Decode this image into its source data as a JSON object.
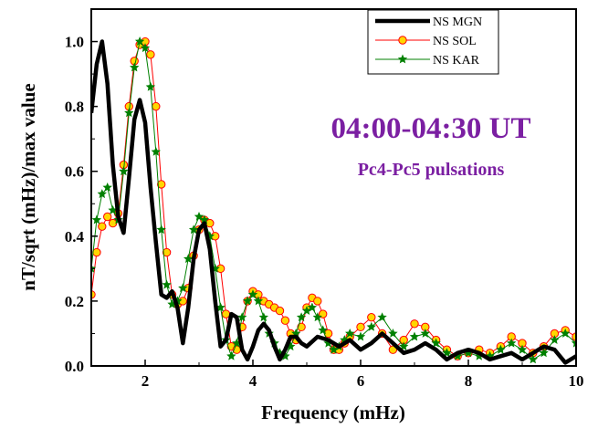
{
  "chart_data": {
    "type": "line",
    "xlabel": "Frequency (mHz)",
    "ylabel": "nT/sqrt (mHz)/max value",
    "xlim": [
      1,
      10
    ],
    "ylim": [
      0,
      1.1
    ],
    "x_ticks": [
      2,
      4,
      6,
      8,
      10
    ],
    "y_ticks": [
      0.0,
      0.2,
      0.4,
      0.6,
      0.8,
      1.0
    ],
    "x_tick_labels": [
      "2",
      "4",
      "6",
      "8",
      "10"
    ],
    "y_tick_labels": [
      "0.0",
      "0.2",
      "0.4",
      "0.6",
      "0.8",
      "1.0"
    ],
    "grid": false,
    "legend_position": "top-right",
    "annotations": [
      "04:00-04:30 UT",
      "Pc4-Pc5 pulsations"
    ],
    "annotation_color": "#7b1fa2",
    "series": [
      {
        "name": "NS MGN",
        "color": "#000000",
        "marker": "none",
        "x": [
          1.0,
          1.1,
          1.2,
          1.3,
          1.4,
          1.5,
          1.6,
          1.7,
          1.8,
          1.9,
          2.0,
          2.1,
          2.2,
          2.3,
          2.4,
          2.5,
          2.6,
          2.7,
          2.8,
          2.9,
          3.0,
          3.1,
          3.2,
          3.3,
          3.4,
          3.5,
          3.6,
          3.7,
          3.8,
          3.9,
          4.0,
          4.1,
          4.2,
          4.3,
          4.4,
          4.5,
          4.6,
          4.7,
          4.8,
          4.9,
          5.0,
          5.2,
          5.4,
          5.6,
          5.8,
          6.0,
          6.2,
          6.4,
          6.6,
          6.8,
          7.0,
          7.2,
          7.4,
          7.6,
          7.8,
          8.0,
          8.2,
          8.4,
          8.6,
          8.8,
          9.0,
          9.2,
          9.4,
          9.6,
          9.8,
          10.0
        ],
        "y": [
          0.78,
          0.93,
          1.0,
          0.87,
          0.62,
          0.46,
          0.41,
          0.58,
          0.76,
          0.82,
          0.75,
          0.55,
          0.38,
          0.22,
          0.21,
          0.23,
          0.18,
          0.07,
          0.18,
          0.33,
          0.42,
          0.44,
          0.36,
          0.2,
          0.06,
          0.08,
          0.16,
          0.15,
          0.05,
          0.02,
          0.06,
          0.11,
          0.13,
          0.11,
          0.06,
          0.02,
          0.05,
          0.09,
          0.09,
          0.07,
          0.06,
          0.09,
          0.08,
          0.06,
          0.08,
          0.05,
          0.07,
          0.1,
          0.07,
          0.04,
          0.05,
          0.07,
          0.05,
          0.02,
          0.04,
          0.05,
          0.04,
          0.02,
          0.03,
          0.04,
          0.02,
          0.04,
          0.06,
          0.05,
          0.01,
          0.03
        ]
      },
      {
        "name": "NS SOL",
        "color": "#ff0000",
        "marker": "circle",
        "marker_fill": "#ffd700",
        "x": [
          1.0,
          1.1,
          1.2,
          1.3,
          1.4,
          1.5,
          1.6,
          1.7,
          1.8,
          1.9,
          2.0,
          2.1,
          2.2,
          2.3,
          2.4,
          2.5,
          2.6,
          2.7,
          2.8,
          2.9,
          3.0,
          3.1,
          3.2,
          3.3,
          3.4,
          3.5,
          3.6,
          3.7,
          3.8,
          3.9,
          4.0,
          4.1,
          4.2,
          4.3,
          4.4,
          4.5,
          4.6,
          4.7,
          4.8,
          4.9,
          5.0,
          5.1,
          5.2,
          5.3,
          5.4,
          5.5,
          5.6,
          5.7,
          5.8,
          6.0,
          6.2,
          6.4,
          6.6,
          6.8,
          7.0,
          7.2,
          7.4,
          7.6,
          7.8,
          8.0,
          8.2,
          8.4,
          8.6,
          8.8,
          9.0,
          9.2,
          9.4,
          9.6,
          9.8,
          10.0
        ],
        "y": [
          0.22,
          0.35,
          0.43,
          0.46,
          0.44,
          0.47,
          0.62,
          0.8,
          0.94,
          0.99,
          1.0,
          0.96,
          0.8,
          0.56,
          0.35,
          0.22,
          0.19,
          0.2,
          0.24,
          0.34,
          0.42,
          0.45,
          0.44,
          0.4,
          0.3,
          0.16,
          0.06,
          0.05,
          0.12,
          0.2,
          0.23,
          0.22,
          0.2,
          0.19,
          0.18,
          0.17,
          0.14,
          0.1,
          0.08,
          0.12,
          0.18,
          0.21,
          0.2,
          0.16,
          0.1,
          0.05,
          0.05,
          0.07,
          0.09,
          0.12,
          0.15,
          0.1,
          0.05,
          0.08,
          0.13,
          0.12,
          0.08,
          0.05,
          0.03,
          0.04,
          0.05,
          0.04,
          0.06,
          0.09,
          0.07,
          0.04,
          0.06,
          0.1,
          0.11,
          0.09
        ]
      },
      {
        "name": "NS KAR",
        "color": "#008000",
        "marker": "star",
        "x": [
          1.0,
          1.1,
          1.2,
          1.3,
          1.4,
          1.5,
          1.6,
          1.7,
          1.8,
          1.9,
          2.0,
          2.1,
          2.2,
          2.3,
          2.4,
          2.5,
          2.6,
          2.7,
          2.8,
          2.9,
          3.0,
          3.1,
          3.2,
          3.3,
          3.4,
          3.5,
          3.6,
          3.7,
          3.8,
          3.9,
          4.0,
          4.1,
          4.2,
          4.3,
          4.4,
          4.5,
          4.6,
          4.7,
          4.8,
          4.9,
          5.0,
          5.1,
          5.2,
          5.3,
          5.4,
          5.5,
          5.6,
          5.7,
          5.8,
          6.0,
          6.2,
          6.4,
          6.6,
          6.8,
          7.0,
          7.2,
          7.4,
          7.6,
          7.8,
          8.0,
          8.2,
          8.4,
          8.6,
          8.8,
          9.0,
          9.2,
          9.4,
          9.6,
          9.8,
          10.0
        ],
        "y": [
          0.3,
          0.45,
          0.53,
          0.55,
          0.48,
          0.45,
          0.6,
          0.78,
          0.92,
          1.0,
          0.98,
          0.86,
          0.66,
          0.42,
          0.25,
          0.19,
          0.2,
          0.24,
          0.33,
          0.42,
          0.46,
          0.45,
          0.4,
          0.3,
          0.18,
          0.08,
          0.03,
          0.07,
          0.15,
          0.2,
          0.22,
          0.2,
          0.15,
          0.1,
          0.07,
          0.04,
          0.03,
          0.06,
          0.1,
          0.15,
          0.17,
          0.18,
          0.15,
          0.11,
          0.07,
          0.05,
          0.06,
          0.08,
          0.1,
          0.09,
          0.12,
          0.15,
          0.1,
          0.06,
          0.09,
          0.1,
          0.07,
          0.04,
          0.03,
          0.04,
          0.03,
          0.03,
          0.05,
          0.07,
          0.05,
          0.02,
          0.04,
          0.08,
          0.1,
          0.07
        ]
      }
    ]
  }
}
